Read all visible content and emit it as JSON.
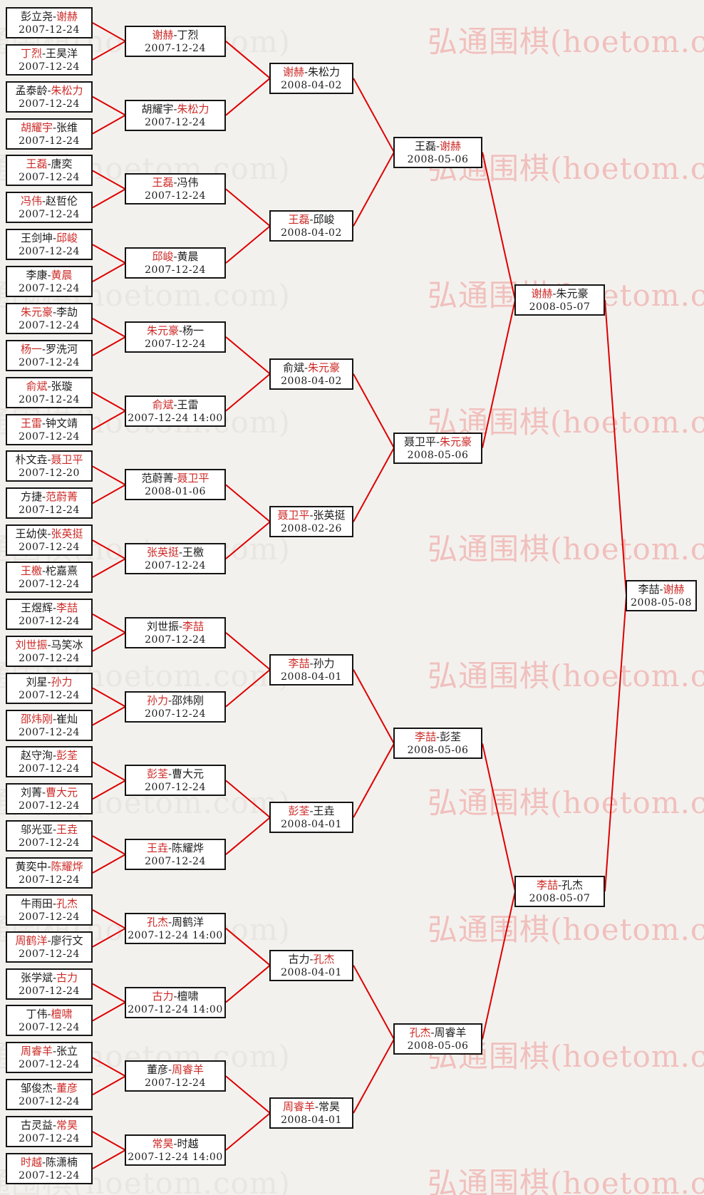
{
  "watermark": {
    "text": "弘通围棋(hoetom.com)"
  },
  "colors": {
    "background": "#f3f1ee",
    "box_background": "#ffffff",
    "box_border": "#141414",
    "normal_text": "#1c1c1c",
    "winner_text": "#cc2a26",
    "connector_line": "#dd0000",
    "watermark_pink": "#f0c0bd",
    "watermark_gray": "#e9e6e2"
  },
  "separator": "-",
  "bracket": {
    "rounds": [
      {
        "name": "round-of-64",
        "matches": [
          {
            "p1": "彭立尧",
            "p2": "谢赫",
            "winner": 2,
            "date": "2007-12-24"
          },
          {
            "p1": "丁烈",
            "p2": "王昊洋",
            "winner": 1,
            "date": "2007-12-24"
          },
          {
            "p1": "孟泰龄",
            "p2": "朱松力",
            "winner": 2,
            "date": "2007-12-24"
          },
          {
            "p1": "胡耀宇",
            "p2": "张维",
            "winner": 1,
            "date": "2007-12-24"
          },
          {
            "p1": "王磊",
            "p2": "唐奕",
            "winner": 1,
            "date": "2007-12-24"
          },
          {
            "p1": "冯伟",
            "p2": "赵哲伦",
            "winner": 1,
            "date": "2007-12-24"
          },
          {
            "p1": "王剑坤",
            "p2": "邱峻",
            "winner": 2,
            "date": "2007-12-24"
          },
          {
            "p1": "李康",
            "p2": "黄晨",
            "winner": 2,
            "date": "2007-12-24"
          },
          {
            "p1": "朱元豪",
            "p2": "李劼",
            "winner": 1,
            "date": "2007-12-24"
          },
          {
            "p1": "杨一",
            "p2": "罗洗河",
            "winner": 1,
            "date": "2007-12-24"
          },
          {
            "p1": "俞斌",
            "p2": "张璇",
            "winner": 1,
            "date": "2007-12-24"
          },
          {
            "p1": "王雷",
            "p2": "钟文靖",
            "winner": 1,
            "date": "2007-12-24"
          },
          {
            "p1": "朴文垚",
            "p2": "聂卫平",
            "winner": 2,
            "date": "2007-12-20"
          },
          {
            "p1": "方捷",
            "p2": "范蔚菁",
            "winner": 2,
            "date": "2007-12-24"
          },
          {
            "p1": "王幼侠",
            "p2": "张英挺",
            "winner": 2,
            "date": "2007-12-24"
          },
          {
            "p1": "王檄",
            "p2": "柁嘉熹",
            "winner": 1,
            "date": "2007-12-24"
          },
          {
            "p1": "王煜辉",
            "p2": "李喆",
            "winner": 2,
            "date": "2007-12-24"
          },
          {
            "p1": "刘世振",
            "p2": "马笑冰",
            "winner": 1,
            "date": "2007-12-24"
          },
          {
            "p1": "刘星",
            "p2": "孙力",
            "winner": 2,
            "date": "2007-12-24"
          },
          {
            "p1": "邵炜刚",
            "p2": "崔灿",
            "winner": 1,
            "date": "2007-12-24"
          },
          {
            "p1": "赵守洵",
            "p2": "彭荃",
            "winner": 2,
            "date": "2007-12-24"
          },
          {
            "p1": "刘菁",
            "p2": "曹大元",
            "winner": 2,
            "date": "2007-12-24"
          },
          {
            "p1": "邬光亚",
            "p2": "王垚",
            "winner": 2,
            "date": "2007-12-24"
          },
          {
            "p1": "黄奕中",
            "p2": "陈耀烨",
            "winner": 2,
            "date": "2007-12-24"
          },
          {
            "p1": "牛雨田",
            "p2": "孔杰",
            "winner": 2,
            "date": "2007-12-24"
          },
          {
            "p1": "周鹤洋",
            "p2": "廖行文",
            "winner": 1,
            "date": "2007-12-24"
          },
          {
            "p1": "张学斌",
            "p2": "古力",
            "winner": 2,
            "date": "2007-12-24"
          },
          {
            "p1": "丁伟",
            "p2": "檀啸",
            "winner": 2,
            "date": "2007-12-24"
          },
          {
            "p1": "周睿羊",
            "p2": "张立",
            "winner": 1,
            "date": "2007-12-24"
          },
          {
            "p1": "邹俊杰",
            "p2": "董彦",
            "winner": 2,
            "date": "2007-12-24"
          },
          {
            "p1": "古灵益",
            "p2": "常昊",
            "winner": 2,
            "date": "2007-12-24"
          },
          {
            "p1": "时越",
            "p2": "陈潇楠",
            "winner": 1,
            "date": "2007-12-24"
          }
        ]
      },
      {
        "name": "round-of-32",
        "matches": [
          {
            "p1": "谢赫",
            "p2": "丁烈",
            "winner": 1,
            "date": "2007-12-24"
          },
          {
            "p1": "胡耀宇",
            "p2": "朱松力",
            "winner": 2,
            "date": "2007-12-24"
          },
          {
            "p1": "王磊",
            "p2": "冯伟",
            "winner": 1,
            "date": "2007-12-24"
          },
          {
            "p1": "邱峻",
            "p2": "黄晨",
            "winner": 1,
            "date": "2007-12-24"
          },
          {
            "p1": "朱元豪",
            "p2": "杨一",
            "winner": 1,
            "date": "2007-12-24"
          },
          {
            "p1": "俞斌",
            "p2": "王雷",
            "winner": 1,
            "date": "2007-12-24 14:00"
          },
          {
            "p1": "范蔚菁",
            "p2": "聂卫平",
            "winner": 2,
            "date": "2008-01-06"
          },
          {
            "p1": "张英挺",
            "p2": "王檄",
            "winner": 1,
            "date": "2007-12-24"
          },
          {
            "p1": "刘世振",
            "p2": "李喆",
            "winner": 2,
            "date": "2007-12-24"
          },
          {
            "p1": "孙力",
            "p2": "邵炜刚",
            "winner": 1,
            "date": "2007-12-24"
          },
          {
            "p1": "彭荃",
            "p2": "曹大元",
            "winner": 1,
            "date": "2007-12-24"
          },
          {
            "p1": "王垚",
            "p2": "陈耀烨",
            "winner": 1,
            "date": "2007-12-24"
          },
          {
            "p1": "孔杰",
            "p2": "周鹤洋",
            "winner": 1,
            "date": "2007-12-24 14:00"
          },
          {
            "p1": "古力",
            "p2": "檀啸",
            "winner": 1,
            "date": "2007-12-24 14:00"
          },
          {
            "p1": "董彦",
            "p2": "周睿羊",
            "winner": 2,
            "date": "2007-12-24"
          },
          {
            "p1": "常昊",
            "p2": "时越",
            "winner": 1,
            "date": "2007-12-24 14:00"
          }
        ]
      },
      {
        "name": "round-of-16",
        "matches": [
          {
            "p1": "谢赫",
            "p2": "朱松力",
            "winner": 1,
            "date": "2008-04-02"
          },
          {
            "p1": "王磊",
            "p2": "邱峻",
            "winner": 1,
            "date": "2008-04-02"
          },
          {
            "p1": "俞斌",
            "p2": "朱元豪",
            "winner": 2,
            "date": "2008-04-02"
          },
          {
            "p1": "聂卫平",
            "p2": "张英挺",
            "winner": 1,
            "date": "2008-02-26"
          },
          {
            "p1": "李喆",
            "p2": "孙力",
            "winner": 1,
            "date": "2008-04-01"
          },
          {
            "p1": "彭荃",
            "p2": "王垚",
            "winner": 1,
            "date": "2008-04-01"
          },
          {
            "p1": "古力",
            "p2": "孔杰",
            "winner": 2,
            "date": "2008-04-01"
          },
          {
            "p1": "周睿羊",
            "p2": "常昊",
            "winner": 1,
            "date": "2008-04-01"
          }
        ]
      },
      {
        "name": "quarterfinals",
        "matches": [
          {
            "p1": "王磊",
            "p2": "谢赫",
            "winner": 2,
            "date": "2008-05-06"
          },
          {
            "p1": "聂卫平",
            "p2": "朱元豪",
            "winner": 2,
            "date": "2008-05-06"
          },
          {
            "p1": "李喆",
            "p2": "彭荃",
            "winner": 1,
            "date": "2008-05-06"
          },
          {
            "p1": "孔杰",
            "p2": "周睿羊",
            "winner": 1,
            "date": "2008-05-06"
          }
        ]
      },
      {
        "name": "semifinals",
        "matches": [
          {
            "p1": "谢赫",
            "p2": "朱元豪",
            "winner": 1,
            "date": "2008-05-07"
          },
          {
            "p1": "李喆",
            "p2": "孔杰",
            "winner": 1,
            "date": "2008-05-07"
          }
        ]
      },
      {
        "name": "final",
        "matches": [
          {
            "p1": "李喆",
            "p2": "谢赫",
            "winner": 2,
            "date": "2008-05-08"
          }
        ]
      }
    ]
  }
}
